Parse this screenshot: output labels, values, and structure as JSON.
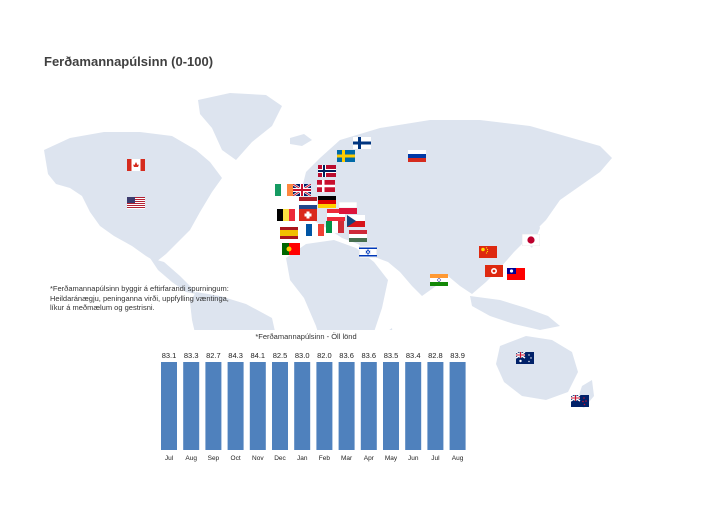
{
  "title": "Ferðamannapúlsinn (0-100)",
  "note": "*Ferðamannapúlsinn byggir á eftirfarandi spurningum: Heildaránægju, peninganna virði, uppfylling væntinga, líkur á meðmælum og gestrisni.",
  "colors": {
    "bar": "#4f81bd",
    "map": "#dde4ef"
  },
  "flags": [
    "flag-canada",
    "flag-usa",
    "flag-finland",
    "flag-norway",
    "flag-sweden",
    "flag-russia",
    "flag-ireland",
    "flag-uk",
    "flag-denmark",
    "flag-netherlands",
    "flag-germany",
    "flag-belgium",
    "flag-switzerland",
    "flag-austria",
    "flag-poland",
    "flag-spain",
    "flag-france",
    "flag-italy",
    "flag-czech",
    "flag-hungary",
    "flag-portugal",
    "flag-israel",
    "flag-china",
    "flag-japan",
    "flag-india",
    "flag-hong-kong",
    "flag-taiwan",
    "flag-australia",
    "flag-new-zealand"
  ],
  "chart_data": {
    "type": "bar",
    "title": "*Ferðamannapúlsinn - Öll lönd",
    "categories": [
      "Jul",
      "Aug",
      "Sep",
      "Oct",
      "Nov",
      "Dec",
      "Jan",
      "Feb",
      "Mar",
      "Apr",
      "May",
      "Jun",
      "Jul",
      "Aug"
    ],
    "values": [
      83.1,
      83.3,
      82.7,
      84.3,
      84.1,
      82.5,
      83.0,
      82.0,
      83.6,
      83.6,
      83.5,
      83.4,
      82.8,
      83.9
    ],
    "data_labels": true,
    "grid": false,
    "legend": "none"
  }
}
